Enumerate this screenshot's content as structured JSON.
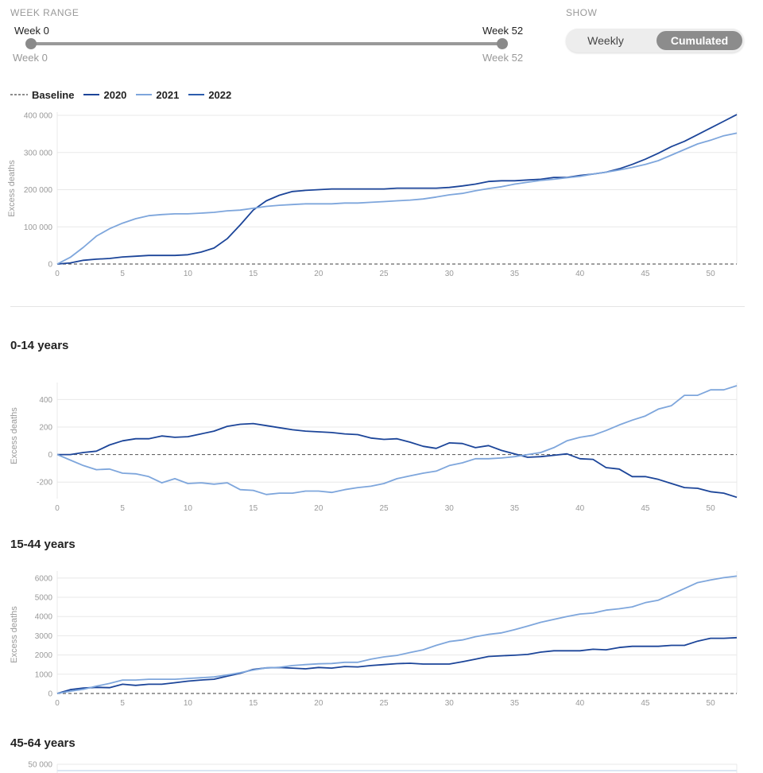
{
  "controls": {
    "week_range_label": "WEEK RANGE",
    "week_start": "Week 0",
    "week_end": "Week 52",
    "show_label": "SHOW",
    "weekly": "Weekly",
    "cumulated": "Cumulated"
  },
  "legend": {
    "baseline": "Baseline",
    "items": [
      "2020",
      "2021",
      "2022"
    ]
  },
  "colors": {
    "y2020": "#1c4599",
    "y2021": "#7ea6dc",
    "y2022": "#2c5cad",
    "baseline": "#666666",
    "grid": "#e8e8e8"
  },
  "chart_data": [
    {
      "type": "line",
      "title": "",
      "ylabel": "Excess deaths",
      "xlim": [
        0,
        52
      ],
      "ylim": [
        0,
        400000
      ],
      "yticks": [
        0,
        100000,
        200000,
        300000,
        400000
      ],
      "ytick_labels": [
        "0",
        "100 000",
        "200 000",
        "300 000",
        "400 000"
      ],
      "xticks": [
        0,
        5,
        10,
        15,
        20,
        25,
        30,
        35,
        40,
        45,
        50
      ],
      "series": [
        {
          "name": "2020",
          "values": [
            0,
            3000,
            10000,
            13000,
            15000,
            19000,
            21000,
            23000,
            23000,
            23000,
            25000,
            32000,
            43000,
            68000,
            105000,
            145000,
            170000,
            185000,
            195000,
            198000,
            200000,
            202000,
            202000,
            202000,
            202000,
            202000,
            204000,
            204000,
            204000,
            204000,
            206000,
            210000,
            215000,
            222000,
            224000,
            224000,
            226000,
            228000,
            233000,
            233000,
            238000,
            242000,
            247000,
            256000,
            268000,
            282000,
            298000,
            316000,
            330000,
            348000,
            366000,
            384000,
            402000
          ]
        },
        {
          "name": "2021",
          "values": [
            0,
            18000,
            45000,
            75000,
            95000,
            110000,
            122000,
            130000,
            133000,
            135000,
            135000,
            137000,
            139000,
            143000,
            145000,
            150000,
            155000,
            158000,
            160000,
            162000,
            162000,
            162000,
            164000,
            164000,
            166000,
            168000,
            170000,
            172000,
            175000,
            180000,
            186000,
            190000,
            197000,
            203000,
            208000,
            215000,
            220000,
            225000,
            228000,
            232000,
            236000,
            242000,
            247000,
            253000,
            260000,
            268000,
            278000,
            293000,
            308000,
            323000,
            333000,
            345000,
            352000
          ]
        },
        {
          "name": "2022",
          "values": []
        }
      ]
    },
    {
      "type": "line",
      "title": "0-14 years",
      "ylabel": "Excess deaths",
      "xlim": [
        0,
        52
      ],
      "ylim": [
        -320,
        500
      ],
      "yticks": [
        -200,
        0,
        200,
        400
      ],
      "ytick_labels": [
        "-200",
        "0",
        "200",
        "400"
      ],
      "xticks": [
        0,
        5,
        10,
        15,
        20,
        25,
        30,
        35,
        40,
        45,
        50
      ],
      "series": [
        {
          "name": "2020",
          "values": [
            0,
            0,
            15,
            25,
            70,
            100,
            115,
            115,
            135,
            125,
            130,
            150,
            170,
            205,
            220,
            225,
            210,
            195,
            180,
            170,
            165,
            160,
            150,
            145,
            120,
            110,
            115,
            90,
            60,
            45,
            85,
            80,
            50,
            65,
            30,
            5,
            -20,
            -15,
            -5,
            5,
            -30,
            -35,
            -95,
            -105,
            -160,
            -160,
            -180,
            -210,
            -240,
            -245,
            -270,
            -280,
            -310
          ]
        },
        {
          "name": "2021",
          "values": [
            0,
            -40,
            -80,
            -110,
            -105,
            -135,
            -140,
            -160,
            -205,
            -175,
            -210,
            -205,
            -215,
            -205,
            -255,
            -260,
            -290,
            -280,
            -280,
            -265,
            -265,
            -275,
            -255,
            -240,
            -230,
            -210,
            -175,
            -155,
            -135,
            -120,
            -80,
            -60,
            -30,
            -30,
            -25,
            -15,
            0,
            15,
            50,
            100,
            125,
            140,
            175,
            215,
            250,
            280,
            330,
            355,
            430,
            430,
            470,
            470,
            500
          ]
        },
        {
          "name": "2022",
          "values": []
        }
      ]
    },
    {
      "type": "line",
      "title": "15-44 years",
      "ylabel": "Excess deaths",
      "xlim": [
        0,
        52
      ],
      "ylim": [
        0,
        6200
      ],
      "yticks": [
        0,
        1000,
        2000,
        3000,
        4000,
        5000,
        6000
      ],
      "ytick_labels": [
        "0",
        "1000",
        "2000",
        "3000",
        "4000",
        "5000",
        "6000"
      ],
      "xticks": [
        0,
        5,
        10,
        15,
        20,
        25,
        30,
        35,
        40,
        45,
        50
      ],
      "series": [
        {
          "name": "2020",
          "values": [
            0,
            200,
            280,
            320,
            300,
            480,
            420,
            480,
            480,
            560,
            640,
            700,
            740,
            900,
            1050,
            1250,
            1330,
            1350,
            1320,
            1280,
            1350,
            1320,
            1400,
            1380,
            1450,
            1500,
            1550,
            1570,
            1530,
            1530,
            1530,
            1650,
            1780,
            1920,
            1960,
            1990,
            2030,
            2150,
            2220,
            2220,
            2220,
            2300,
            2270,
            2390,
            2450,
            2450,
            2450,
            2500,
            2500,
            2720,
            2870,
            2870,
            2900
          ]
        },
        {
          "name": "2021",
          "values": [
            0,
            120,
            220,
            380,
            520,
            700,
            700,
            740,
            740,
            740,
            780,
            820,
            860,
            960,
            1080,
            1220,
            1330,
            1360,
            1450,
            1500,
            1540,
            1560,
            1620,
            1620,
            1780,
            1900,
            1980,
            2130,
            2270,
            2500,
            2700,
            2780,
            2950,
            3070,
            3150,
            3320,
            3500,
            3700,
            3850,
            4000,
            4130,
            4180,
            4330,
            4400,
            4500,
            4720,
            4850,
            5150,
            5450,
            5760,
            5900,
            6020,
            6100
          ]
        },
        {
          "name": "2022",
          "values": []
        }
      ]
    },
    {
      "type": "line",
      "title": "45-64 years",
      "ylabel": "",
      "xlim": [
        0,
        52
      ],
      "ylim": [
        0,
        50000
      ],
      "yticks": [
        50000
      ],
      "ytick_labels": [
        "50 000"
      ],
      "xticks": [],
      "series": []
    }
  ]
}
